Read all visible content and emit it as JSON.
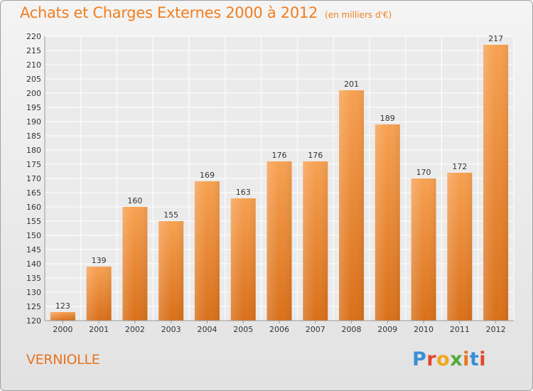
{
  "chart_data": {
    "type": "bar",
    "title": "Achats et Charges Externes 2000 à 2012",
    "subtitle": "(en milliers d'€)",
    "categories": [
      "2000",
      "2001",
      "2002",
      "2003",
      "2004",
      "2005",
      "2006",
      "2007",
      "2008",
      "2009",
      "2010",
      "2011",
      "2012"
    ],
    "values": [
      123,
      139,
      160,
      155,
      169,
      163,
      176,
      176,
      201,
      189,
      170,
      172,
      217
    ],
    "ylim": [
      120,
      220
    ],
    "yticks": [
      120,
      125,
      130,
      135,
      140,
      145,
      150,
      155,
      160,
      165,
      170,
      175,
      180,
      185,
      190,
      195,
      200,
      205,
      210,
      215,
      220
    ],
    "grid": true,
    "bar_color": "#f07e1f"
  },
  "location": "VERNIOLLE",
  "brand": {
    "letters": [
      "P",
      "r",
      "o",
      "x",
      "i",
      "t",
      "i"
    ]
  }
}
